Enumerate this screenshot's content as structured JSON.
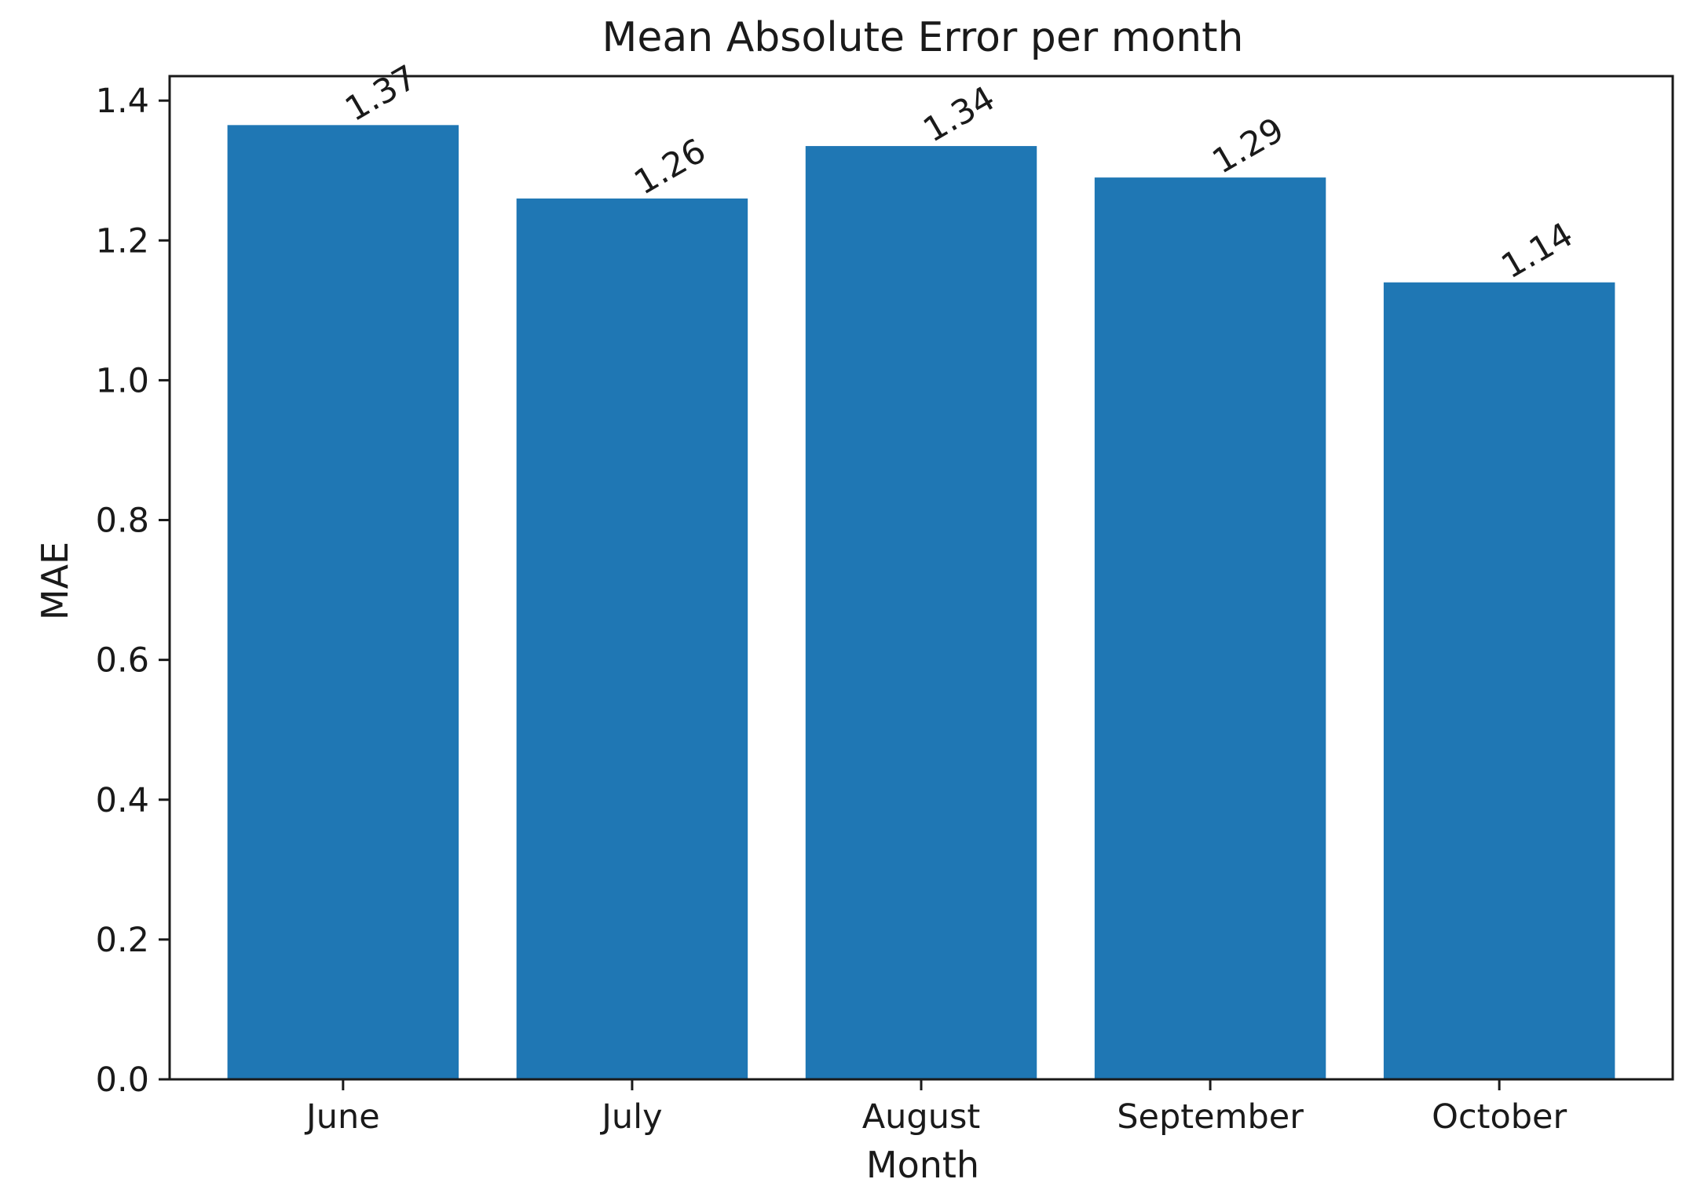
{
  "chart_data": {
    "type": "bar",
    "title": "Mean Absolute Error per month",
    "xlabel": "Month",
    "ylabel": "MAE",
    "categories": [
      "June",
      "July",
      "August",
      "September",
      "October"
    ],
    "values": [
      1.365,
      1.26,
      1.335,
      1.29,
      1.14
    ],
    "data_labels": [
      "1.37",
      "1.26",
      "1.34",
      "1.29",
      "1.14"
    ],
    "ylim": [
      0,
      1.435
    ],
    "yticks": [
      0.0,
      0.2,
      0.4,
      0.6,
      0.8,
      1.0,
      1.2,
      1.4
    ],
    "ytick_labels": [
      "0.0",
      "0.2",
      "0.4",
      "0.6",
      "0.8",
      "1.0",
      "1.2",
      "1.4"
    ],
    "grid": false,
    "legend": "none",
    "bar_color": "#1f77b4"
  }
}
